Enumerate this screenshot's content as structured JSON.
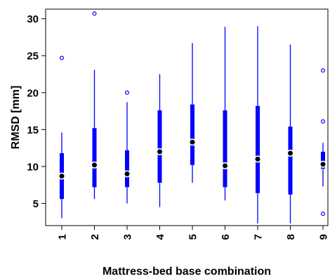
{
  "chart_data": {
    "type": "boxplot",
    "xlabel": "Mattress-bed base combination",
    "ylabel": "RMSD [mm]",
    "categories": [
      "1",
      "2",
      "3",
      "4",
      "5",
      "6",
      "7",
      "8",
      "9"
    ],
    "ylim": [
      2.0,
      31.3
    ],
    "yticks": [
      5,
      10,
      15,
      20,
      25,
      30
    ],
    "grid": false,
    "color": "#0000ff",
    "series": [
      {
        "whisker_low": 3.0,
        "q1": 5.6,
        "median": 8.7,
        "q3": 11.8,
        "whisker_high": 14.6,
        "outliers": [
          24.7
        ]
      },
      {
        "whisker_low": 5.6,
        "q1": 7.2,
        "median": 10.2,
        "q3": 15.2,
        "whisker_high": 23.1,
        "outliers": [
          30.7
        ]
      },
      {
        "whisker_low": 5.0,
        "q1": 7.2,
        "median": 9.0,
        "q3": 12.2,
        "whisker_high": 18.7,
        "outliers": [
          20.0
        ]
      },
      {
        "whisker_low": 4.5,
        "q1": 7.8,
        "median": 12.0,
        "q3": 17.6,
        "whisker_high": 22.5,
        "outliers": []
      },
      {
        "whisker_low": 7.8,
        "q1": 10.2,
        "median": 13.3,
        "q3": 18.4,
        "whisker_high": 26.7,
        "outliers": []
      },
      {
        "whisker_low": 5.4,
        "q1": 7.2,
        "median": 10.1,
        "q3": 17.6,
        "whisker_high": 28.9,
        "outliers": []
      },
      {
        "whisker_low": 2.3,
        "q1": 6.4,
        "median": 11.0,
        "q3": 18.2,
        "whisker_high": 29.0,
        "outliers": []
      },
      {
        "whisker_low": 2.3,
        "q1": 6.2,
        "median": 11.8,
        "q3": 15.4,
        "whisker_high": 26.5,
        "outliers": []
      },
      {
        "whisker_low": 7.3,
        "q1": 9.7,
        "median": 10.3,
        "q3": 12.0,
        "whisker_high": 13.2,
        "outliers": [
          23.0,
          16.1,
          3.6
        ]
      }
    ]
  }
}
